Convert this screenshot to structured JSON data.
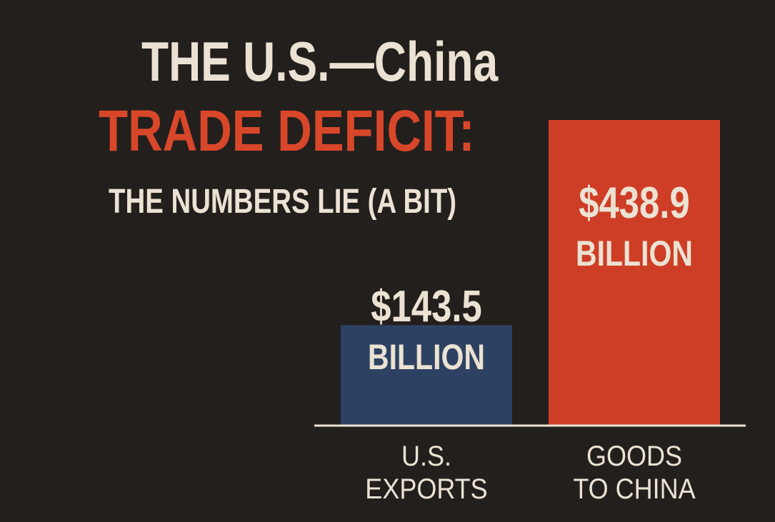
{
  "title": {
    "line1": "THE U.S.—China",
    "line2": "TRADE DEFICIT:",
    "line3": "THE NUMBERS LIE (A BIT)"
  },
  "colors": {
    "background": "#231f1d",
    "text": "#ebe2d3",
    "accent_red": "#d8472a",
    "us_exports": "#2d4263",
    "goods_to_china": "#ce3e26",
    "baseline": "#ebe2d3"
  },
  "chart_data": {
    "type": "bar",
    "title": "THE U.S.—China TRADE DEFICIT: THE NUMBERS LIE (A BIT)",
    "categories": [
      [
        "U.S.",
        "EXPORTS"
      ],
      [
        "GOODS",
        "TO CHINA"
      ]
    ],
    "values": [
      143.5,
      438.9
    ],
    "value_labels": [
      [
        "$143.5",
        "BILLION"
      ],
      [
        "$438.9",
        "BILLION"
      ]
    ],
    "bar_colors": [
      "#2d4263",
      "#ce3e26"
    ],
    "unit": "billion USD",
    "xlabel": "",
    "ylabel": "",
    "ylim": [
      0,
      438.9
    ],
    "grid": false,
    "legend": "none"
  }
}
